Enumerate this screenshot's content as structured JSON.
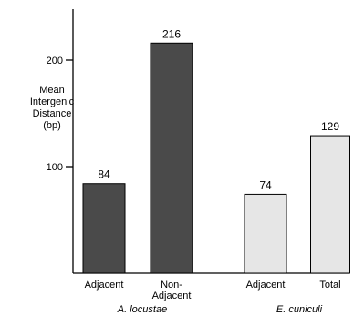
{
  "chart_data": {
    "type": "bar",
    "title": "",
    "xlabel": "",
    "ylabel_lines": [
      "Mean",
      "Intergenic",
      "Distance",
      "(bp)"
    ],
    "ylim": [
      0,
      245
    ],
    "yticks": [
      100,
      200
    ],
    "ytick_labels": [
      "100",
      "200"
    ],
    "grid": false,
    "legend": "none",
    "bars": [
      {
        "group": "A. locustae",
        "category_lines": [
          "Adjacent"
        ],
        "value": 84,
        "value_label": "84",
        "color": "#4a4a4a"
      },
      {
        "group": "A. locustae",
        "category_lines": [
          "Non-",
          "Adjacent"
        ],
        "value": 216,
        "value_label": "216",
        "color": "#4a4a4a"
      },
      {
        "group": "E. cuniculi",
        "category_lines": [
          "Adjacent"
        ],
        "value": 74,
        "value_label": "74",
        "color": "#e6e6e6"
      },
      {
        "group": "E. cuniculi",
        "category_lines": [
          "Total"
        ],
        "value": 129,
        "value_label": "129",
        "color": "#e6e6e6"
      }
    ],
    "groups": [
      "A. locustae",
      "E. cuniculi"
    ]
  }
}
